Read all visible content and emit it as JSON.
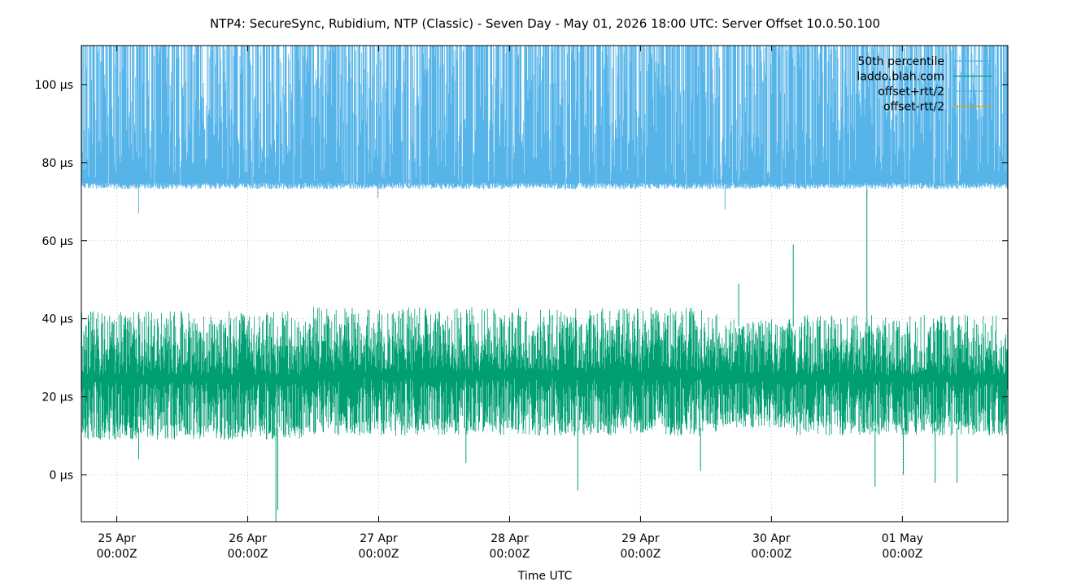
{
  "chart_data": {
    "type": "line",
    "title": "NTP4: SecureSync, Rubidium, NTP (Classic) - Seven Day - May 01, 2026 18:00 UTC: Server Offset 10.0.50.100",
    "xlabel": "Time UTC",
    "ylabel": "",
    "y_unit": "µs",
    "ylim": [
      -12,
      110
    ],
    "yticks": [
      0,
      20,
      40,
      60,
      80,
      100
    ],
    "ytick_labels": [
      "0 µs",
      "20 µs",
      "40 µs",
      "60 µs",
      "80 µs",
      "100 µs"
    ],
    "xlim": [
      "2026-04-24T17:30Z",
      "2026-05-01T19:20Z"
    ],
    "xticks": [
      {
        "time": "2026-04-25T00:00Z",
        "line1": "25 Apr",
        "line2": "00:00Z"
      },
      {
        "time": "2026-04-26T00:00Z",
        "line1": "26 Apr",
        "line2": "00:00Z"
      },
      {
        "time": "2026-04-27T00:00Z",
        "line1": "27 Apr",
        "line2": "00:00Z"
      },
      {
        "time": "2026-04-28T00:00Z",
        "line1": "28 Apr",
        "line2": "00:00Z"
      },
      {
        "time": "2026-04-29T00:00Z",
        "line1": "29 Apr",
        "line2": "00:00Z"
      },
      {
        "time": "2026-04-30T00:00Z",
        "line1": "30 Apr",
        "line2": "00:00Z"
      },
      {
        "time": "2026-05-01T00:00Z",
        "line1": "01 May",
        "line2": "00:00Z"
      }
    ],
    "grid": true,
    "legend_position": "top-right",
    "legend": [
      {
        "label": "50th percentile",
        "color": "#56b4e9"
      },
      {
        "label": "laddo.blah.com",
        "color": "#009e73"
      },
      {
        "label": "offset+rtt/2",
        "color": "#56b4e9"
      },
      {
        "label": "offset-rtt/2",
        "color": "#e69f00"
      }
    ],
    "series": [
      {
        "name": "offset+rtt/2",
        "color": "#56b4e9",
        "typical_floor": 74,
        "typical_range": [
          73,
          110
        ],
        "dips": [
          {
            "time": "2026-04-25T04:00Z",
            "value": 67
          },
          {
            "time": "2026-04-26T23:50Z",
            "value": 71
          },
          {
            "time": "2026-04-29T15:30Z",
            "value": 68
          },
          {
            "time": "2026-04-30T17:30Z",
            "value": 71
          }
        ]
      },
      {
        "name": "laddo.blah.com",
        "color": "#009e73",
        "typical_range": [
          9,
          43
        ],
        "segments": [
          {
            "from": "2026-04-24T17:30Z",
            "to": "2026-04-26T12:00Z",
            "low": 9,
            "high": 42
          },
          {
            "from": "2026-04-26T12:00Z",
            "to": "2026-04-29T14:00Z",
            "low": 10,
            "high": 43
          },
          {
            "from": "2026-04-29T14:00Z",
            "to": "2026-04-30T04:00Z",
            "low": 12,
            "high": 40
          },
          {
            "from": "2026-04-30T04:00Z",
            "to": "2026-05-01T19:20Z",
            "low": 10,
            "high": 41
          }
        ],
        "spikes": [
          {
            "time": "2026-04-25T04:00Z",
            "value": 4
          },
          {
            "time": "2026-04-26T05:10Z",
            "value": -12
          },
          {
            "time": "2026-04-26T05:30Z",
            "value": -9
          },
          {
            "time": "2026-04-27T16:00Z",
            "value": 3
          },
          {
            "time": "2026-04-28T12:30Z",
            "value": -4
          },
          {
            "time": "2026-04-29T11:00Z",
            "value": 1
          },
          {
            "time": "2026-04-29T18:00Z",
            "value": 49
          },
          {
            "time": "2026-04-30T04:00Z",
            "value": 59
          },
          {
            "time": "2026-04-30T17:30Z",
            "value": 73
          },
          {
            "time": "2026-04-30T19:00Z",
            "value": -3
          },
          {
            "time": "2026-05-01T00:10Z",
            "value": 0
          },
          {
            "time": "2026-05-01T06:00Z",
            "value": -2
          },
          {
            "time": "2026-05-01T10:00Z",
            "value": -2
          }
        ]
      }
    ]
  }
}
